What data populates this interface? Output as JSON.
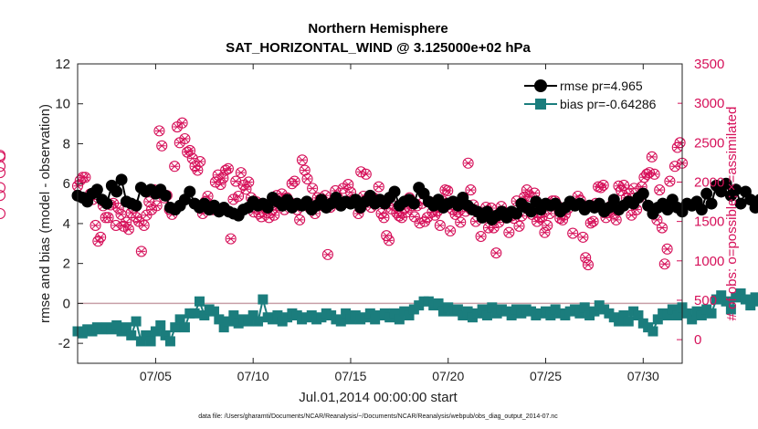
{
  "chart_data": {
    "type": "line",
    "title": "Northern Hemisphere",
    "subtitle": "SAT_HORIZONTAL_WIND @ 3.125000e+02 hPa",
    "xlabel": "Jul.01,2014 00:00:00 start",
    "ylabel_left": "rmse and bias (model - observation)",
    "ylabel_right": "# of obs: o=possible; ×=assimilated",
    "footer": "data file: /Users/gharamti/Documents/NCAR/Reanalysis/~/Documents/NCAR/Reanalysis/webpub/obs_diag_output_2014-07.nc",
    "xlim": [
      1,
      32
    ],
    "ylim_left": [
      -3,
      12
    ],
    "ylim_right": [
      -300,
      3500
    ],
    "x_ticks": [
      5,
      10,
      15,
      20,
      25,
      30
    ],
    "x_tick_labels": [
      "07/05",
      "07/10",
      "07/15",
      "07/20",
      "07/25",
      "07/30"
    ],
    "y_left_ticks": [
      -2,
      0,
      2,
      4,
      6,
      8,
      10,
      12
    ],
    "y_right_ticks": [
      0,
      500,
      1000,
      1500,
      2000,
      2500,
      3000,
      3500
    ],
    "zero_line": 0,
    "legend": [
      {
        "label": "rmse pr=4.965",
        "color": "#000000",
        "marker": "circle"
      },
      {
        "label": "bias pr=-0.64286",
        "color": "#1b7d7d",
        "marker": "square"
      }
    ],
    "colors": {
      "rmse": "#000000",
      "bias": "#1b7d7d",
      "obs": "#d6115a",
      "zero_line": "#c8a0a8"
    },
    "x_start": 1.0,
    "x_step": 0.25,
    "series": [
      {
        "name": "rmse",
        "values": [
          5.4,
          5.3,
          5.1,
          5.5,
          5.7,
          5.2,
          5.0,
          5.9,
          5.6,
          6.2,
          5.1,
          5.0,
          4.9,
          5.8,
          5.6,
          5.7,
          5.5,
          5.7,
          5.4,
          4.8,
          4.7,
          4.9,
          5.2,
          5.6,
          5.0,
          4.8,
          5.0,
          4.7,
          4.9,
          4.6,
          4.8,
          4.6,
          4.5,
          4.4,
          4.7,
          4.8,
          5.1,
          4.9,
          5.0,
          4.8,
          5.3,
          5.1,
          4.9,
          5.2,
          4.8,
          5.0,
          4.9,
          5.1,
          4.7,
          4.9,
          5.2,
          4.8,
          5.0,
          5.3,
          4.9,
          5.1,
          5.0,
          5.2,
          4.8,
          5.1,
          5.4,
          5.0,
          5.2,
          5.0,
          5.3,
          5.6,
          4.9,
          5.1,
          5.2,
          5.0,
          5.8,
          5.5,
          5.1,
          4.9,
          5.2,
          4.8,
          5.0,
          5.1,
          4.9,
          5.3,
          4.9,
          4.7,
          4.6,
          4.3,
          4.6,
          4.2,
          4.4,
          4.6,
          4.3,
          4.6,
          4.5,
          5.0,
          4.8,
          4.6,
          5.1,
          4.7,
          5.0,
          4.9,
          5.0,
          4.6,
          4.8,
          5.1,
          4.9,
          5.0,
          4.7,
          4.9,
          4.8,
          5.0,
          4.6,
          4.8,
          5.2,
          4.7,
          4.9,
          5.1,
          5.0,
          5.3,
          5.5,
          4.9,
          4.5,
          4.8,
          5.0,
          4.7,
          5.2,
          4.8,
          4.6,
          5.0,
          4.9,
          5.1,
          4.7,
          5.5,
          5.0,
          5.9,
          5.6,
          6.0,
          5.4,
          5.7,
          5.0,
          5.6,
          5.2,
          4.8,
          5.2,
          5.0,
          5.3,
          4.9,
          5.2,
          5.1,
          5.0,
          4.6,
          4.4,
          4.5,
          4.3
        ]
      },
      {
        "name": "bias",
        "values": [
          -1.4,
          -1.5,
          -1.3,
          -1.4,
          -1.2,
          -1.3,
          -1.2,
          -1.3,
          -1.1,
          -1.4,
          -1.2,
          -1.6,
          -0.9,
          -1.9,
          -1.6,
          -1.9,
          -1.4,
          -1.1,
          -1.6,
          -1.9,
          -1.2,
          -0.8,
          -1.2,
          -0.5,
          -0.5,
          0.1,
          -0.6,
          -0.3,
          -0.4,
          -0.8,
          -1.2,
          -0.9,
          -0.6,
          -1.0,
          -0.8,
          -0.9,
          -0.6,
          -0.9,
          0.2,
          -0.7,
          -0.8,
          -0.6,
          -0.9,
          -0.7,
          -0.5,
          -0.6,
          -0.8,
          -0.7,
          -0.6,
          -0.8,
          -0.7,
          -0.5,
          -0.6,
          -0.8,
          -0.9,
          -0.5,
          -0.8,
          -0.6,
          -0.8,
          -0.7,
          -0.5,
          -0.8,
          -0.6,
          -0.5,
          -0.7,
          -0.5,
          -0.8,
          -0.4,
          -0.6,
          -0.3,
          -0.1,
          0.1,
          0.1,
          -0.1,
          0.0,
          -0.4,
          -0.2,
          -0.4,
          -0.3,
          -0.6,
          -0.4,
          -0.7,
          -0.5,
          -0.3,
          -0.6,
          -0.2,
          -0.5,
          -0.3,
          -0.4,
          -0.6,
          -0.3,
          -0.5,
          -0.3,
          -0.4,
          -0.6,
          -0.5,
          -0.4,
          -0.6,
          -0.3,
          -0.5,
          -0.6,
          -0.4,
          -0.3,
          -0.5,
          -0.2,
          -0.6,
          -0.4,
          -0.1,
          -0.3,
          -0.5,
          -0.7,
          -0.9,
          -0.6,
          -0.9,
          -0.4,
          -0.6,
          -1.0,
          -1.2,
          -1.4,
          -0.8,
          -0.5,
          -0.6,
          -0.3,
          -0.6,
          -0.2,
          -0.5,
          -0.8,
          -0.4,
          -0.6,
          -0.3,
          -0.5,
          0.2,
          0.4,
          0.1,
          -0.3,
          0.3,
          0.5,
          0.2,
          -0.1,
          0.3,
          0.1,
          -0.3,
          0.2,
          0.0,
          0.2,
          -0.2,
          -1.1,
          -1.4,
          -1.1,
          -0.5,
          -0.8,
          -0.6,
          -0.3
        ]
      },
      {
        "name": "obs_count",
        "values": [
          1950,
          2020,
          2060,
          2060,
          1800,
          1850,
          1780,
          1450,
          1250,
          1300,
          1700,
          1550,
          1550,
          1710,
          1730,
          1450,
          1670,
          1590,
          1440,
          1490,
          1400,
          1610,
          1670,
          1550,
          1500,
          1120,
          1450,
          1580,
          1750,
          1650,
          1900,
          1700,
          2650,
          2460,
          1800,
          1830,
          1650,
          1590,
          2200,
          2700,
          2500,
          2750,
          2550,
          2380,
          2400,
          2300,
          2200,
          2150,
          2260,
          1600,
          1750,
          1820,
          1700,
          1650,
          2000,
          2090,
          1970,
          2050,
          2150,
          2170,
          1280,
          1780,
          2010,
          1820,
          2120,
          1960,
          1910,
          2000,
          1800,
          1620,
          1750,
          1600,
          1560,
          1720,
          1650,
          1550,
          1650,
          1580,
          1830,
          1700,
          1850,
          1650,
          1800,
          1750,
          1980,
          2010,
          1650,
          1520,
          2280,
          2150,
          2040,
          1670,
          1920,
          1600,
          1800,
          1780,
          1700,
          1830,
          1080,
          1680,
          1740,
          1890,
          1800,
          1700,
          1920,
          1740,
          1970,
          1870,
          1780,
          1740,
          1600,
          2130,
          1820,
          2100,
          1810,
          1680,
          1800,
          1780,
          1940,
          1600,
          1550,
          1320,
          1260,
          1660,
          1700,
          1610,
          1570,
          1550,
          1660,
          1620,
          1800,
          1700,
          1560,
          1700,
          1480,
          1730,
          1500,
          1550,
          1750,
          1620,
          1580,
          1630,
          1450,
          1760,
          1900,
          1890,
          1380,
          1650,
          1590,
          1620,
          1490,
          1750,
          1630,
          2240,
          1900,
          1710,
          1500,
          1620,
          1310,
          1550,
          1680,
          1420,
          1670,
          1420,
          1100,
          1490,
          1690,
          1620,
          1560,
          1360,
          1570,
          1540,
          1760,
          1440,
          1570,
          1810,
          1900,
          1820,
          1590,
          1860,
          1500,
          1550,
          1560,
          1360,
          1450,
          1600,
          1760,
          1760,
          1700,
          1540,
          1520,
          1590,
          1660,
          1740,
          1350,
          1720,
          1820,
          1770,
          1300,
          1040,
          950,
          1480,
          1500,
          1730,
          1940,
          1930,
          1960,
          1550,
          1630,
          1700,
          1600,
          1520,
          1950,
          1890,
          1960,
          1800,
          1850,
          1580,
          1920,
          1650,
          1800,
          1940,
          2060,
          2100,
          2120,
          2320,
          2100,
          1520,
          1900,
          1420,
          960,
          1150,
          2010,
          1720,
          2200,
          2440,
          2500,
          2240,
          2320,
          2120,
          1930,
          1830,
          1600,
          2340,
          2200
        ]
      },
      {
        "name": "obs_count_x",
        "values": [
          1.0,
          1.131,
          1.262,
          1.393,
          1.523,
          1.654,
          1.785,
          1.916,
          2.047,
          2.178,
          2.309,
          2.44,
          2.57,
          2.701,
          2.832,
          2.963,
          3.094,
          3.225,
          3.356,
          3.487,
          3.617,
          3.748,
          3.879,
          4.01,
          4.141,
          4.272,
          4.403,
          4.534,
          4.664,
          4.795,
          4.926,
          5.057,
          5.188,
          5.319,
          5.45,
          5.581,
          5.711,
          5.842,
          5.973,
          6.104,
          6.235,
          6.366,
          6.497,
          6.628,
          6.758,
          6.889,
          7.02,
          7.151,
          7.282,
          7.413,
          7.544,
          7.675,
          7.805,
          7.936,
          8.067,
          8.198,
          8.329,
          8.46,
          8.591,
          8.722,
          8.852,
          8.983,
          9.114,
          9.245,
          9.376,
          9.507,
          9.638,
          9.769,
          9.899,
          10.03,
          10.161,
          10.292,
          10.423,
          10.554,
          10.685,
          10.816,
          10.946,
          11.077,
          11.208,
          11.339,
          11.47,
          11.601,
          11.732,
          11.863,
          11.993,
          12.124,
          12.255,
          12.386,
          12.517,
          12.648,
          12.779,
          12.91,
          13.04,
          13.171,
          13.302,
          13.433,
          13.564,
          13.695,
          13.826,
          13.957,
          14.087,
          14.218,
          14.349,
          14.48,
          14.611,
          14.742,
          14.873,
          15.004,
          15.134,
          15.265,
          15.396,
          15.527,
          15.658,
          15.789,
          15.92,
          16.051,
          16.181,
          16.312,
          16.443,
          16.574,
          16.705,
          16.836,
          16.967,
          17.098,
          17.228,
          17.359,
          17.49,
          17.621,
          17.752,
          17.883,
          18.014,
          18.145,
          18.275,
          18.406,
          18.537,
          18.668,
          18.799,
          18.93,
          19.061,
          19.192,
          19.322,
          19.453,
          19.584,
          19.715,
          19.846,
          19.977,
          20.108,
          20.239,
          20.369,
          20.5,
          20.631,
          20.762,
          20.893,
          21.024,
          21.155,
          21.286,
          21.416,
          21.547,
          21.678,
          21.809,
          21.94,
          22.071,
          22.202,
          22.333,
          22.463,
          22.594,
          22.725,
          22.856,
          22.987,
          23.118,
          23.249,
          23.38,
          23.51,
          23.641,
          23.772,
          23.903,
          24.034,
          24.165,
          24.296,
          24.427,
          24.557,
          24.688,
          24.819,
          24.95,
          25.081,
          25.212,
          25.343,
          25.474,
          25.604,
          25.735,
          25.866,
          25.997,
          26.128,
          26.259,
          26.39,
          26.521,
          26.651,
          26.782,
          26.913,
          27.044,
          27.175,
          27.306,
          27.437,
          27.568,
          27.698,
          27.829,
          27.96,
          28.091,
          28.222,
          28.353,
          28.484,
          28.615,
          28.745,
          28.876,
          29.007,
          29.138,
          29.269,
          29.4,
          29.531,
          29.662,
          29.792,
          29.923,
          30.054,
          30.185,
          30.316,
          30.447,
          30.578,
          30.709,
          30.839,
          30.97,
          31.101,
          31.232,
          31.363,
          31.494,
          31.625,
          31.756,
          31.887,
          32.0
        ]
      }
    ]
  }
}
